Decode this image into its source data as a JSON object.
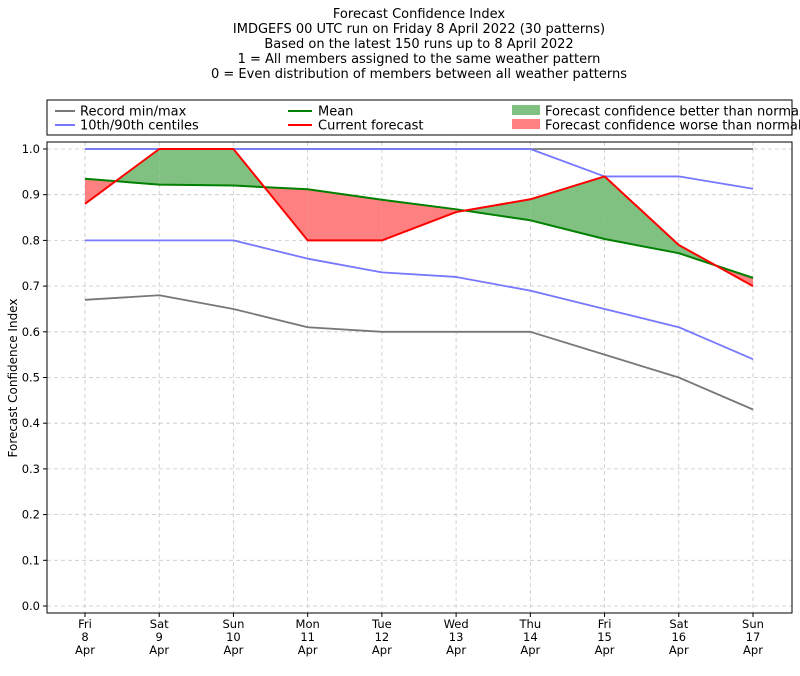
{
  "chart_data": {
    "type": "line",
    "title_lines": [
      "Forecast Confidence Index",
      "IMDGEFS 00 UTC run on Friday 8 April 2022 (30 patterns)",
      "Based on the latest 150 runs up to 8 April 2022",
      "1 = All members assigned to the same weather pattern",
      "0 = Even distribution of members between all weather patterns"
    ],
    "ylabel": "Forecast Confidence Index",
    "xlabel": "",
    "ylim": [
      0.0,
      1.0
    ],
    "yticks": [
      "0.0",
      "0.1",
      "0.2",
      "0.3",
      "0.4",
      "0.5",
      "0.6",
      "0.7",
      "0.8",
      "0.9",
      "1.0"
    ],
    "grid": true,
    "legend_position": "top",
    "categories": [
      [
        "Fri",
        "8",
        "Apr"
      ],
      [
        "Sat",
        "9",
        "Apr"
      ],
      [
        "Sun",
        "10",
        "Apr"
      ],
      [
        "Mon",
        "11",
        "Apr"
      ],
      [
        "Tue",
        "12",
        "Apr"
      ],
      [
        "Wed",
        "13",
        "Apr"
      ],
      [
        "Thu",
        "14",
        "Apr"
      ],
      [
        "Fri",
        "15",
        "Apr"
      ],
      [
        "Sat",
        "16",
        "Apr"
      ],
      [
        "Sun",
        "17",
        "Apr"
      ]
    ],
    "series": [
      {
        "name": "Record min/max",
        "color": "#777777",
        "kind": "record_max",
        "values": [
          1.0,
          1.0,
          1.0,
          1.0,
          1.0,
          1.0,
          1.0,
          1.0,
          1.0,
          1.0
        ]
      },
      {
        "name": "Record min/max",
        "color": "#777777",
        "kind": "record_min",
        "values": [
          0.67,
          0.68,
          0.65,
          0.61,
          0.6,
          0.6,
          0.6,
          0.55,
          0.5,
          0.43
        ]
      },
      {
        "name": "10th/90th centiles",
        "color": "#7777ff",
        "kind": "p90",
        "values": [
          1.0,
          1.0,
          1.0,
          1.0,
          1.0,
          1.0,
          1.0,
          0.94,
          0.94,
          0.913
        ]
      },
      {
        "name": "10th/90th centiles",
        "color": "#7777ff",
        "kind": "p10",
        "values": [
          0.8,
          0.8,
          0.8,
          0.76,
          0.73,
          0.72,
          0.69,
          0.65,
          0.61,
          0.54
        ]
      },
      {
        "name": "Mean",
        "color": "#008000",
        "kind": "mean",
        "values": [
          0.935,
          0.922,
          0.92,
          0.912,
          0.889,
          0.868,
          0.844,
          0.803,
          0.772,
          0.718
        ]
      },
      {
        "name": "Current forecast",
        "color": "#ff0000",
        "kind": "current",
        "values": [
          0.88,
          1.0,
          1.0,
          0.8,
          0.8,
          0.862,
          0.89,
          0.94,
          0.79,
          0.7
        ]
      }
    ],
    "legend": [
      {
        "label": "Record min/max",
        "color": "#777777",
        "kind": "line"
      },
      {
        "label": "10th/90th centiles",
        "color": "#7777ff",
        "kind": "line"
      },
      {
        "label": "Mean",
        "color": "#008000",
        "kind": "line"
      },
      {
        "label": "Current forecast",
        "color": "#ff0000",
        "kind": "line"
      },
      {
        "label": "Forecast confidence better than normal",
        "color": "#80c080",
        "kind": "patch"
      },
      {
        "label": "Forecast confidence worse than normal",
        "color": "#ff8080",
        "kind": "patch"
      }
    ]
  }
}
